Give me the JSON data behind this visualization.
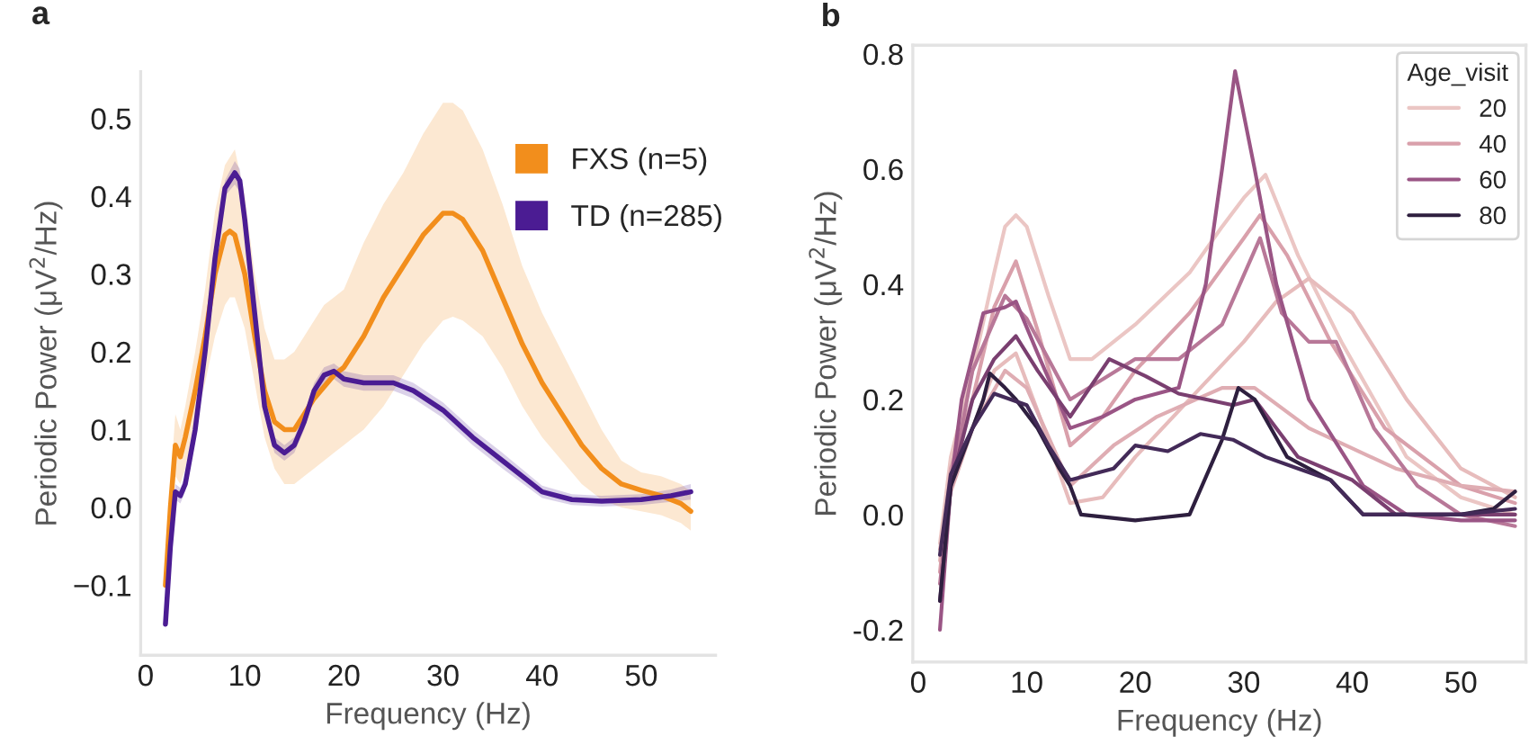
{
  "chart_data": [
    {
      "type": "line",
      "title": "a",
      "xlabel": "Frequency (Hz)",
      "ylabel": "Periodic Power (μV$^{2}$/Hz)",
      "xlim": [
        -0.5,
        57.5
      ],
      "ylim": [
        -0.19,
        0.56
      ],
      "xticks": [
        0,
        10,
        20,
        30,
        40,
        50
      ],
      "yticks": [
        {
          "value": -0.1,
          "label": "−0.1"
        },
        {
          "value": 0.0,
          "label": "0.0"
        },
        {
          "value": 0.1,
          "label": "0.1"
        },
        {
          "value": 0.2,
          "label": "0.2"
        },
        {
          "value": 0.3,
          "label": "0.3"
        },
        {
          "value": 0.4,
          "label": "0.4"
        },
        {
          "value": 0.5,
          "label": "0.5"
        }
      ],
      "grid": false,
      "legend": "top right",
      "series": [
        {
          "name": "FXS (n=5)",
          "color": "#f28e1c",
          "x": [
            2,
            2.5,
            3,
            3.5,
            4,
            5,
            6,
            7,
            8,
            8.5,
            9,
            10,
            11,
            12,
            13,
            14,
            15,
            16,
            17,
            18,
            19,
            20,
            21,
            22,
            24,
            26,
            28,
            30,
            31,
            32,
            34,
            36,
            38,
            40,
            42,
            44,
            46,
            48,
            50,
            52,
            54,
            55
          ],
          "values": [
            -0.1,
            0.0,
            0.08,
            0.065,
            0.09,
            0.15,
            0.22,
            0.3,
            0.35,
            0.355,
            0.35,
            0.3,
            0.22,
            0.15,
            0.11,
            0.1,
            0.1,
            0.12,
            0.14,
            0.155,
            0.17,
            0.18,
            0.2,
            0.22,
            0.27,
            0.31,
            0.35,
            0.378,
            0.378,
            0.37,
            0.33,
            0.27,
            0.21,
            0.16,
            0.12,
            0.08,
            0.05,
            0.03,
            0.022,
            0.015,
            0.005,
            -0.005
          ],
          "lower": [
            -0.11,
            -0.02,
            0.04,
            0.03,
            0.05,
            0.11,
            0.16,
            0.22,
            0.26,
            0.27,
            0.27,
            0.23,
            0.16,
            0.09,
            0.05,
            0.03,
            0.03,
            0.04,
            0.05,
            0.06,
            0.07,
            0.08,
            0.09,
            0.1,
            0.13,
            0.17,
            0.21,
            0.24,
            0.245,
            0.24,
            0.22,
            0.18,
            0.13,
            0.09,
            0.06,
            0.03,
            0.01,
            0.0,
            -0.005,
            -0.01,
            -0.02,
            -0.03
          ],
          "upper": [
            -0.09,
            0.03,
            0.12,
            0.1,
            0.13,
            0.2,
            0.28,
            0.38,
            0.44,
            0.45,
            0.46,
            0.4,
            0.3,
            0.23,
            0.19,
            0.19,
            0.2,
            0.22,
            0.24,
            0.26,
            0.27,
            0.28,
            0.31,
            0.34,
            0.39,
            0.43,
            0.48,
            0.52,
            0.52,
            0.51,
            0.46,
            0.39,
            0.31,
            0.25,
            0.2,
            0.15,
            0.1,
            0.06,
            0.045,
            0.04,
            0.03,
            0.02
          ]
        },
        {
          "name": "TD (n=285)",
          "color": "#4b1c93",
          "x": [
            2,
            2.5,
            3,
            3.5,
            4,
            5,
            6,
            7,
            8,
            9,
            9.5,
            10,
            11,
            12,
            13,
            14,
            15,
            16,
            17,
            18,
            19,
            20,
            22,
            25,
            27,
            30,
            33,
            36,
            40,
            43,
            46,
            50,
            53,
            55
          ],
          "values": [
            -0.15,
            -0.05,
            0.02,
            0.015,
            0.03,
            0.1,
            0.2,
            0.32,
            0.41,
            0.43,
            0.42,
            0.37,
            0.25,
            0.13,
            0.08,
            0.07,
            0.08,
            0.11,
            0.15,
            0.17,
            0.175,
            0.165,
            0.16,
            0.16,
            0.15,
            0.125,
            0.09,
            0.06,
            0.02,
            0.01,
            0.008,
            0.01,
            0.015,
            0.02
          ],
          "lower": [
            -0.16,
            -0.06,
            0.01,
            0.005,
            0.02,
            0.09,
            0.19,
            0.31,
            0.4,
            0.415,
            0.405,
            0.355,
            0.24,
            0.12,
            0.07,
            0.06,
            0.07,
            0.1,
            0.14,
            0.16,
            0.165,
            0.155,
            0.15,
            0.15,
            0.14,
            0.115,
            0.08,
            0.05,
            0.012,
            0.003,
            0.001,
            0.003,
            0.007,
            0.01
          ],
          "upper": [
            -0.14,
            -0.04,
            0.03,
            0.025,
            0.04,
            0.11,
            0.21,
            0.33,
            0.42,
            0.445,
            0.435,
            0.385,
            0.26,
            0.14,
            0.09,
            0.08,
            0.09,
            0.12,
            0.16,
            0.18,
            0.185,
            0.175,
            0.17,
            0.17,
            0.16,
            0.135,
            0.1,
            0.07,
            0.028,
            0.017,
            0.015,
            0.017,
            0.023,
            0.03
          ]
        }
      ]
    },
    {
      "type": "line",
      "title": "b",
      "xlabel": "Frequency (Hz)",
      "ylabel": "Periodic Power (μV$^{2}$/Hz)",
      "xlim": [
        -0.5,
        56
      ],
      "ylim": [
        -0.256,
        0.815
      ],
      "xticks": [
        0,
        10,
        20,
        30,
        40,
        50
      ],
      "yticks": [
        {
          "value": -0.2,
          "label": "-0.2"
        },
        {
          "value": 0.0,
          "label": "0.0"
        },
        {
          "value": 0.2,
          "label": "0.2"
        },
        {
          "value": 0.4,
          "label": "0.4"
        },
        {
          "value": 0.6,
          "label": "0.6"
        },
        {
          "value": 0.8,
          "label": "0.8"
        }
      ],
      "grid": false,
      "legend": "top right",
      "legend_title": "Age_visit",
      "series": [
        {
          "name": "20",
          "color": "#ebc6c4",
          "x": [
            2,
            3,
            5,
            7,
            8,
            9,
            10,
            12,
            14,
            16,
            20,
            25,
            28,
            30,
            32,
            35,
            39,
            45,
            50,
            55
          ],
          "values": [
            -0.05,
            0.1,
            0.25,
            0.42,
            0.5,
            0.52,
            0.5,
            0.38,
            0.27,
            0.27,
            0.33,
            0.42,
            0.5,
            0.55,
            0.59,
            0.45,
            0.3,
            0.1,
            0.03,
            0.0
          ]
        },
        {
          "color": "#e7bcbc",
          "x": [
            2,
            3,
            5,
            7,
            9,
            11,
            14,
            17,
            20,
            25,
            30,
            33,
            36,
            40,
            45,
            50,
            55
          ],
          "values": [
            -0.08,
            0.05,
            0.15,
            0.25,
            0.28,
            0.18,
            0.02,
            0.03,
            0.1,
            0.2,
            0.3,
            0.37,
            0.41,
            0.35,
            0.2,
            0.08,
            0.03
          ]
        },
        {
          "name": "40",
          "color": "#d9a0ab",
          "x": [
            2,
            3,
            5,
            7,
            9,
            11,
            14,
            17,
            20,
            25,
            30,
            31.5,
            34,
            38,
            43,
            50,
            55
          ],
          "values": [
            -0.1,
            0.08,
            0.2,
            0.36,
            0.44,
            0.32,
            0.12,
            0.17,
            0.25,
            0.35,
            0.48,
            0.52,
            0.45,
            0.3,
            0.15,
            0.05,
            0.02
          ]
        },
        {
          "color": "#dfadb3",
          "x": [
            2,
            3,
            5,
            8,
            10,
            14,
            18,
            22,
            28,
            31,
            36,
            44,
            50,
            55
          ],
          "values": [
            -0.06,
            0.04,
            0.15,
            0.25,
            0.22,
            0.05,
            0.12,
            0.17,
            0.22,
            0.22,
            0.15,
            0.08,
            0.05,
            0.04
          ]
        },
        {
          "color": "#b87898",
          "x": [
            2,
            3,
            5,
            8,
            10,
            14,
            20,
            24,
            28,
            31.5,
            33.5,
            36,
            38.5,
            42,
            46,
            50,
            55
          ],
          "values": [
            -0.12,
            0.05,
            0.25,
            0.38,
            0.34,
            0.2,
            0.27,
            0.27,
            0.33,
            0.48,
            0.35,
            0.3,
            0.3,
            0.15,
            0.05,
            0.0,
            -0.02
          ]
        },
        {
          "name": "60",
          "color": "#9a5585",
          "x": [
            2,
            3,
            4,
            6,
            8,
            9,
            11,
            14,
            17,
            20,
            24,
            26.5,
            28,
            29.2,
            31,
            33,
            36,
            41,
            45,
            50,
            55
          ],
          "values": [
            -0.2,
            0.05,
            0.2,
            0.35,
            0.36,
            0.37,
            0.28,
            0.15,
            0.17,
            0.2,
            0.22,
            0.4,
            0.6,
            0.77,
            0.6,
            0.4,
            0.2,
            0.05,
            0.0,
            -0.01,
            -0.01
          ]
        },
        {
          "color": "#7a3f70",
          "x": [
            2,
            3,
            5,
            7,
            9,
            11,
            14,
            17.6,
            21,
            24,
            29,
            31,
            35,
            40,
            44,
            50,
            55
          ],
          "values": [
            -0.15,
            0.05,
            0.2,
            0.27,
            0.31,
            0.25,
            0.17,
            0.27,
            0.24,
            0.21,
            0.19,
            0.2,
            0.1,
            0.06,
            0.0,
            0.0,
            0.0
          ]
        },
        {
          "name": "80",
          "color": "#2e1f3f",
          "x": [
            2,
            3,
            4,
            6,
            6.6,
            8,
            9,
            11,
            13,
            14,
            15,
            20,
            25,
            28,
            29.5,
            31,
            34,
            38,
            41,
            45,
            50,
            53,
            55
          ],
          "values": [
            -0.15,
            0.05,
            0.1,
            0.2,
            0.245,
            0.22,
            0.2,
            0.15,
            0.08,
            0.05,
            0.0,
            -0.01,
            0.0,
            0.13,
            0.22,
            0.2,
            0.1,
            0.06,
            0.0,
            0.0,
            0.0,
            0.01,
            0.04
          ]
        },
        {
          "color": "#432a58",
          "x": [
            2,
            3,
            5,
            7,
            10,
            12,
            14,
            18,
            20,
            23,
            26,
            29,
            32,
            35,
            38,
            41,
            45,
            50,
            55
          ],
          "values": [
            -0.07,
            0.07,
            0.15,
            0.21,
            0.19,
            0.12,
            0.06,
            0.08,
            0.12,
            0.11,
            0.14,
            0.13,
            0.1,
            0.08,
            0.06,
            0.0,
            0.0,
            0.0,
            0.01
          ]
        }
      ]
    }
  ]
}
